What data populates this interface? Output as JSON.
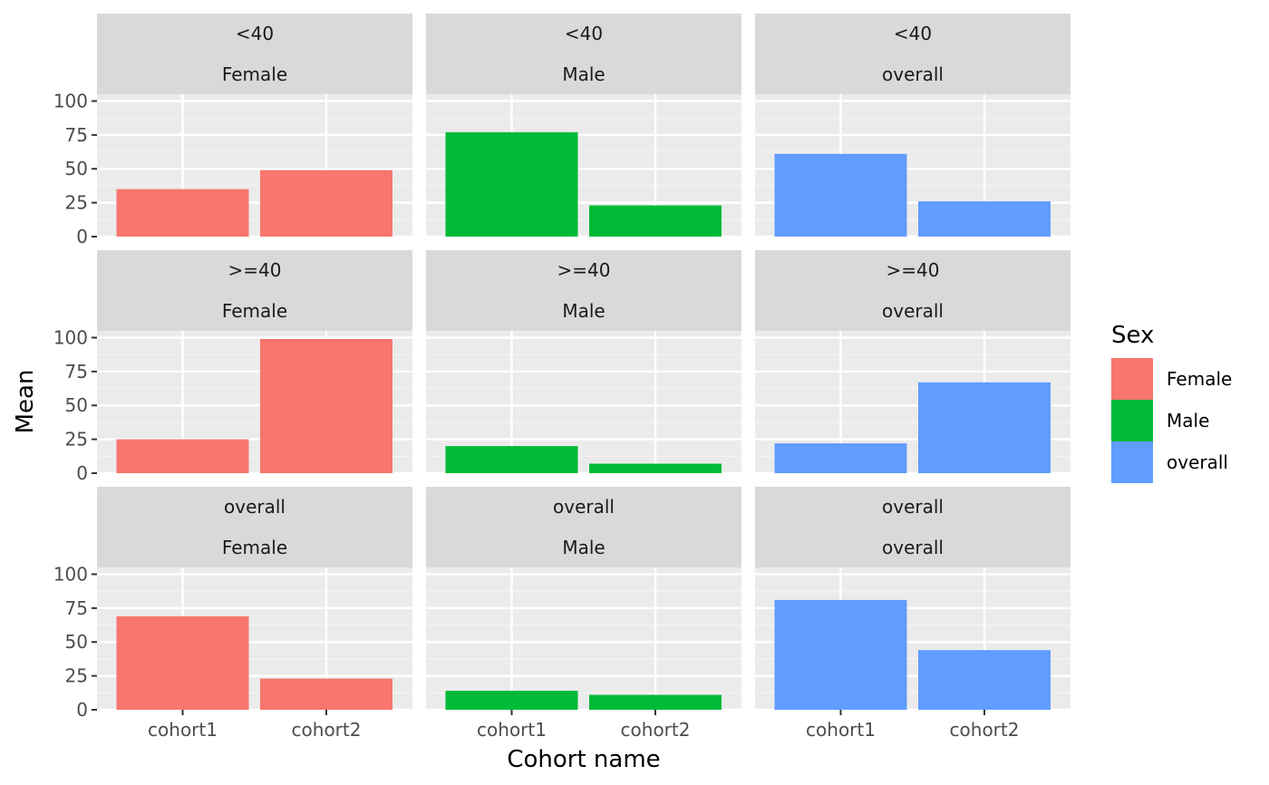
{
  "chart_data": {
    "type": "bar",
    "facet_rows": [
      "<40",
      ">=40",
      "overall"
    ],
    "facet_cols": [
      "Female",
      "Male",
      "overall"
    ],
    "categories": [
      "cohort1",
      "cohort2"
    ],
    "xlabel": "Cohort name",
    "ylabel": "Mean",
    "ylim": [
      0,
      105
    ],
    "yticks": [
      0,
      25,
      50,
      75,
      100
    ],
    "legend": {
      "title": "Sex",
      "entries": [
        "Female",
        "Male",
        "overall"
      ],
      "position": "right"
    },
    "colors": {
      "Female": "#F8766D",
      "Male": "#00BA38",
      "overall": "#619CFF"
    },
    "panels": [
      {
        "row": "<40",
        "col": "Female",
        "values": [
          35,
          49
        ]
      },
      {
        "row": "<40",
        "col": "Male",
        "values": [
          77,
          23
        ]
      },
      {
        "row": "<40",
        "col": "overall",
        "values": [
          61,
          26
        ]
      },
      {
        "row": ">=40",
        "col": "Female",
        "values": [
          25,
          99
        ]
      },
      {
        "row": ">=40",
        "col": "Male",
        "values": [
          20,
          7
        ]
      },
      {
        "row": ">=40",
        "col": "overall",
        "values": [
          22,
          67
        ]
      },
      {
        "row": "overall",
        "col": "Female",
        "values": [
          69,
          23
        ]
      },
      {
        "row": "overall",
        "col": "Male",
        "values": [
          14,
          11
        ]
      },
      {
        "row": "overall",
        "col": "overall",
        "values": [
          81,
          44
        ]
      }
    ],
    "grid": true
  }
}
